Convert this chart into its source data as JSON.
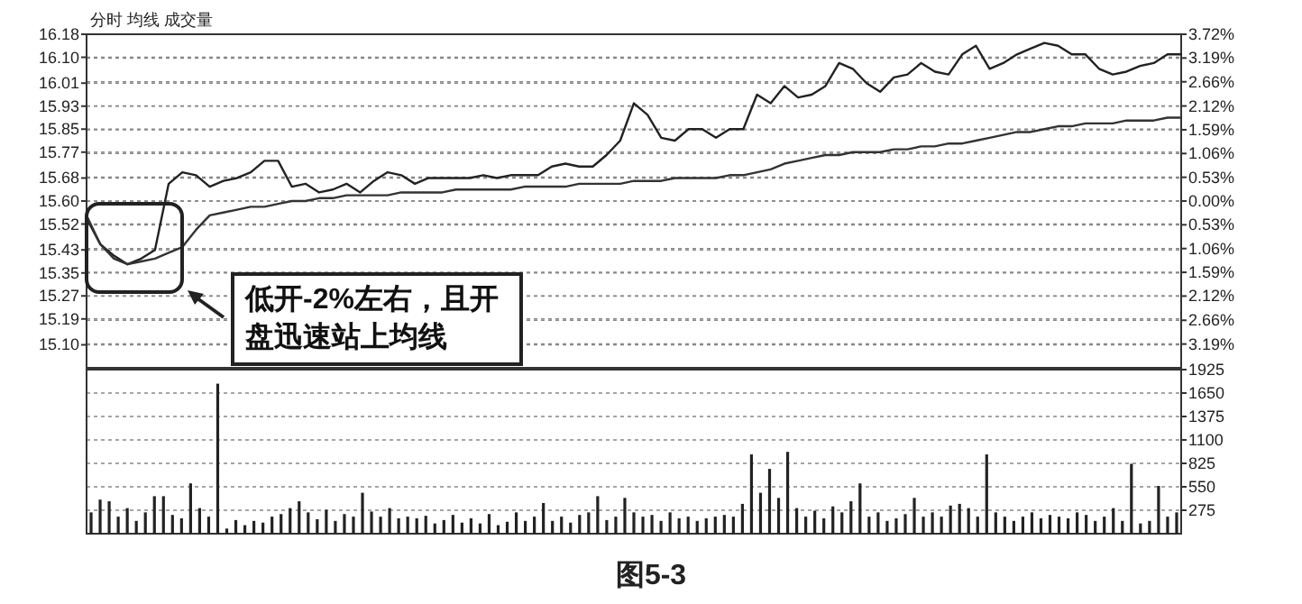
{
  "chart_data": [
    {
      "type": "line",
      "title": "分时 均线 成交量",
      "categories": [
        null,
        null,
        null,
        null,
        null,
        null,
        null,
        null,
        null,
        null,
        null,
        null,
        null,
        null,
        null,
        null,
        null,
        null,
        null,
        null,
        null,
        null,
        null,
        null,
        null,
        null,
        null,
        null,
        null,
        null,
        null,
        null,
        null,
        null,
        null,
        null,
        null,
        null,
        null,
        null,
        null,
        null,
        null,
        null,
        null,
        null,
        null,
        null,
        null,
        null,
        null,
        null,
        null,
        null,
        null,
        null,
        null,
        null,
        null,
        null,
        null,
        null,
        null,
        null,
        null,
        null,
        null,
        null,
        null,
        null,
        null,
        null,
        null,
        null,
        null,
        null,
        null,
        null,
        null,
        null,
        null
      ],
      "ylim": [
        15.02,
        16.18
      ],
      "yticks": [
        16.18,
        {
          "value": 16.1,
          "label": "16.10"
        },
        16.01,
        15.93,
        15.85,
        15.77,
        15.68,
        {
          "value": 15.6,
          "label": "15.60"
        },
        15.52,
        15.43,
        15.35,
        15.27,
        15.19,
        {
          "value": 15.1,
          "label": "15.10"
        }
      ],
      "y2lim": [
        -3.72,
        3.72
      ],
      "y2ticks": [
        {
          "value": 3.72,
          "label": "3.72%"
        },
        {
          "value": 3.19,
          "label": "3.19%"
        },
        {
          "value": 2.66,
          "label": "2.66%"
        },
        {
          "value": 2.12,
          "label": "2.12%"
        },
        {
          "value": 1.59,
          "label": "1.59%"
        },
        {
          "value": 1.06,
          "label": "1.06%"
        },
        {
          "value": 0.53,
          "label": "0.53%"
        },
        {
          "value": 0,
          "label": "0.00%"
        },
        {
          "value": -0.53,
          "label": "0.53%"
        },
        {
          "value": -1.06,
          "label": "1.06%"
        },
        {
          "value": -1.59,
          "label": "1.59%"
        },
        {
          "value": -2.12,
          "label": "2.12%"
        },
        {
          "value": -2.66,
          "label": "2.66%"
        },
        {
          "value": -3.19,
          "label": "3.19%"
        }
      ],
      "grid": "y",
      "line_style": "solid",
      "annotations": [
        "低开-2%左右，且开盘迅速站上均线"
      ],
      "series": [
        {
          "color": "#222222",
          "values": [
            15.54,
            15.45,
            15.41,
            15.38,
            15.4,
            15.43,
            15.66,
            15.7,
            15.69,
            15.65,
            15.67,
            15.68,
            15.7,
            15.74,
            15.74,
            15.65,
            15.66,
            15.63,
            15.64,
            15.66,
            15.63,
            15.67,
            15.7,
            15.69,
            15.66,
            15.68,
            15.68,
            15.68,
            15.68,
            15.69,
            15.68,
            15.69,
            15.69,
            15.69,
            15.72,
            15.73,
            15.72,
            15.72,
            15.76,
            15.81,
            15.94,
            15.9,
            15.82,
            15.81,
            15.85,
            15.85,
            15.82,
            15.85,
            15.85,
            15.97,
            15.94,
            16.0,
            15.96,
            15.97,
            16.0,
            16.08,
            16.06,
            16.01,
            15.98,
            16.03,
            16.04,
            16.08,
            16.05,
            16.04,
            16.11,
            16.14,
            16.06,
            16.08,
            16.11,
            16.13,
            16.15,
            16.14,
            16.11,
            16.11,
            16.06,
            16.04,
            16.05,
            16.07,
            16.08,
            16.11,
            16.11
          ]
        },
        {
          "color": "#333333",
          "values": [
            15.55,
            15.45,
            15.4,
            15.38,
            15.39,
            15.4,
            15.42,
            15.44,
            15.5,
            15.55,
            15.56,
            15.57,
            15.58,
            15.58,
            15.59,
            15.6,
            15.6,
            15.61,
            15.61,
            15.62,
            15.62,
            15.62,
            15.62,
            15.63,
            15.63,
            15.63,
            15.63,
            15.64,
            15.64,
            15.64,
            15.64,
            15.64,
            15.65,
            15.65,
            15.65,
            15.65,
            15.66,
            15.66,
            15.66,
            15.66,
            15.67,
            15.67,
            15.67,
            15.68,
            15.68,
            15.68,
            15.68,
            15.69,
            15.69,
            15.7,
            15.71,
            15.73,
            15.74,
            15.75,
            15.76,
            15.76,
            15.77,
            15.77,
            15.77,
            15.78,
            15.78,
            15.79,
            15.79,
            15.8,
            15.8,
            15.81,
            15.82,
            15.83,
            15.84,
            15.84,
            15.85,
            15.86,
            15.86,
            15.87,
            15.87,
            15.87,
            15.88,
            15.88,
            15.88,
            15.89,
            15.89
          ]
        }
      ]
    },
    {
      "type": "bar",
      "categories": [
        null,
        null,
        null,
        null,
        null,
        null,
        null,
        null,
        null,
        null,
        null,
        null,
        null,
        null,
        null,
        null,
        null,
        null,
        null,
        null,
        null,
        null,
        null,
        null,
        null,
        null,
        null,
        null,
        null,
        null,
        null,
        null,
        null,
        null,
        null,
        null,
        null,
        null,
        null,
        null,
        null,
        null,
        null,
        null,
        null,
        null,
        null,
        null,
        null,
        null,
        null,
        null,
        null,
        null,
        null,
        null,
        null,
        null,
        null,
        null,
        null,
        null,
        null,
        null,
        null,
        null,
        null,
        null,
        null,
        null,
        null,
        null,
        null,
        null,
        null,
        null,
        null,
        null,
        null,
        null,
        null,
        null,
        null,
        null,
        null,
        null,
        null,
        null,
        null,
        null,
        null,
        null,
        null,
        null,
        null,
        null,
        null,
        null,
        null,
        null,
        null,
        null,
        null,
        null,
        null,
        null,
        null,
        null,
        null,
        null,
        null,
        null,
        null,
        null,
        null,
        null,
        null,
        null,
        null,
        null,
        null
      ],
      "y2lim": [
        0,
        1925
      ],
      "y2ticks": [
        275,
        550,
        825,
        1100,
        1375,
        1650,
        1925
      ],
      "grid": "y",
      "annotations": [
        "图5-3"
      ],
      "series": [
        {
          "color": "#222222",
          "axis": "y2",
          "values": [
            250,
            400,
            380,
            200,
            300,
            150,
            250,
            440,
            440,
            220,
            180,
            590,
            300,
            200,
            1760,
            60,
            160,
            100,
            150,
            130,
            200,
            230,
            300,
            380,
            250,
            170,
            280,
            150,
            230,
            200,
            480,
            260,
            200,
            300,
            180,
            200,
            180,
            210,
            120,
            160,
            220,
            130,
            180,
            120,
            230,
            100,
            140,
            250,
            150,
            200,
            360,
            150,
            200,
            130,
            220,
            250,
            440,
            160,
            200,
            420,
            250,
            200,
            220,
            150,
            250,
            180,
            200,
            150,
            180,
            200,
            220,
            200,
            350,
            930,
            480,
            760,
            420,
            960,
            300,
            200,
            270,
            180,
            320,
            250,
            380,
            590,
            200,
            250,
            150,
            180,
            230,
            420,
            200,
            250,
            200,
            330,
            350,
            300,
            200,
            930,
            250,
            200,
            150,
            200,
            250,
            180,
            220,
            200,
            180,
            250,
            220,
            150,
            200,
            300,
            150,
            820,
            120,
            150,
            560,
            200,
            250
          ]
        }
      ]
    }
  ]
}
